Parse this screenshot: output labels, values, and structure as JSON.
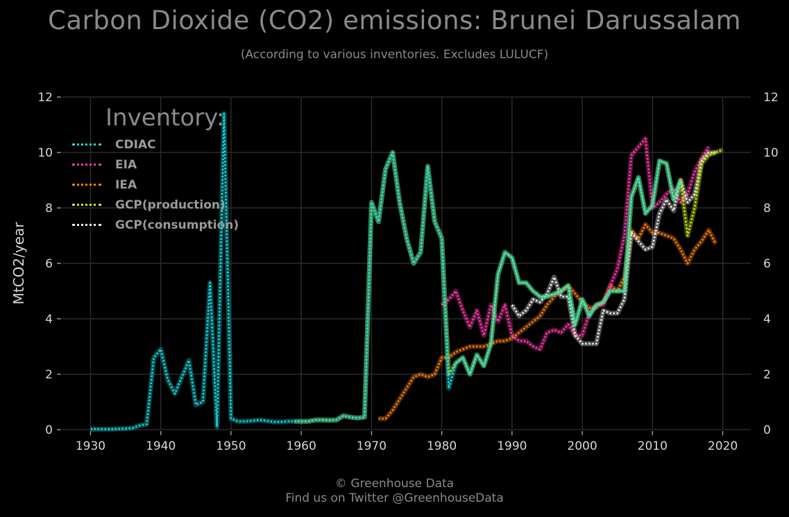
{
  "title": "Carbon Dioxide (CO2) emissions: Brunei Darussalam",
  "subtitle": "(According to various inventories. Excludes LULUCF)",
  "footer": {
    "line1": "© Greenhouse Data",
    "line2": "Find us on Twitter @GreenhouseData"
  },
  "legend": {
    "title": "Inventory:"
  },
  "colors": {
    "background": "#000000",
    "grid": "#2a2a2a",
    "text": "#8a8a8a",
    "tick": "#d8d8d8"
  },
  "chart_data": {
    "type": "line",
    "title": "Carbon Dioxide (CO2) emissions: Brunei Darussalam",
    "subtitle": "(According to various inventories. Excludes LULUCF)",
    "xlabel": "",
    "ylabel": "MtCO2/year",
    "xlim": [
      1926,
      2024
    ],
    "ylim": [
      0,
      12
    ],
    "xticks": [
      1930,
      1940,
      1950,
      1960,
      1970,
      1980,
      1990,
      2000,
      2010,
      2020
    ],
    "yticks": [
      0,
      2,
      4,
      6,
      8,
      10,
      12
    ],
    "grid": true,
    "legend_position": "top-left",
    "series": [
      {
        "name": "CDIAC",
        "color": "#1ad8e0",
        "x": [
          1930,
          1931,
          1932,
          1933,
          1934,
          1935,
          1936,
          1937,
          1938,
          1939,
          1940,
          1941,
          1942,
          1943,
          1944,
          1945,
          1946,
          1947,
          1948,
          1949,
          1950,
          1951,
          1952,
          1953,
          1954,
          1955,
          1956,
          1957,
          1958,
          1959,
          1960,
          1961,
          1962,
          1963,
          1964,
          1965,
          1966,
          1967,
          1968,
          1969,
          1970,
          1971,
          1972,
          1973,
          1974,
          1975,
          1976,
          1977,
          1978,
          1979,
          1980,
          1981,
          1982,
          1983,
          1984,
          1985,
          1986,
          1987,
          1988,
          1989,
          1990,
          1991,
          1992,
          1993,
          1994,
          1995,
          1996,
          1997,
          1998,
          1999,
          2000,
          2001,
          2002,
          2003,
          2004,
          2005,
          2006,
          2007,
          2008,
          2009,
          2010,
          2011,
          2012,
          2013,
          2014
        ],
        "y": [
          0.02,
          0.02,
          0.02,
          0.02,
          0.03,
          0.04,
          0.06,
          0.15,
          0.2,
          2.6,
          2.9,
          1.8,
          1.3,
          1.9,
          2.5,
          0.9,
          1.0,
          5.3,
          0.1,
          11.4,
          0.4,
          0.3,
          0.3,
          0.32,
          0.35,
          0.32,
          0.28,
          0.28,
          0.3,
          0.3,
          0.3,
          0.3,
          0.35,
          0.35,
          0.34,
          0.35,
          0.5,
          0.45,
          0.42,
          0.45,
          8.2,
          7.5,
          9.4,
          10.0,
          8.2,
          6.9,
          6.0,
          6.4,
          9.5,
          7.5,
          6.9,
          1.5,
          2.4,
          2.6,
          2.0,
          2.7,
          2.3,
          3.1,
          5.6,
          6.4,
          6.2,
          5.3,
          5.3,
          5.0,
          4.8,
          4.8,
          4.9,
          5.0,
          5.2,
          3.8,
          4.7,
          4.1,
          4.5,
          4.6,
          5.0,
          5.0,
          5.0,
          8.4,
          9.1,
          7.8,
          8.1,
          9.7,
          9.6,
          8.3,
          9.0
        ]
      },
      {
        "name": "EIA",
        "color": "#ff3aa8",
        "x": [
          1980,
          1981,
          1982,
          1983,
          1984,
          1985,
          1986,
          1987,
          1988,
          1989,
          1990,
          1991,
          1992,
          1993,
          1994,
          1995,
          1996,
          1997,
          1998,
          1999,
          2000,
          2001,
          2002,
          2003,
          2004,
          2005,
          2006,
          2007,
          2008,
          2009,
          2010,
          2011,
          2012,
          2013,
          2014,
          2015,
          2016,
          2017,
          2018
        ],
        "y": [
          4.5,
          4.7,
          5.0,
          4.3,
          3.7,
          4.3,
          3.4,
          4.5,
          3.9,
          4.5,
          3.4,
          3.2,
          3.2,
          3.0,
          2.9,
          3.5,
          3.6,
          3.5,
          3.8,
          3.4,
          3.4,
          4.2,
          4.5,
          4.5,
          5.2,
          5.8,
          7.0,
          9.9,
          10.2,
          10.5,
          8.0,
          8.2,
          8.5,
          8.7,
          8.2,
          8.5,
          9.3,
          9.8,
          10.2
        ]
      },
      {
        "name": "IEA",
        "color": "#ff7f0e",
        "x": [
          1971,
          1972,
          1973,
          1974,
          1975,
          1976,
          1977,
          1978,
          1979,
          1980,
          1981,
          1982,
          1983,
          1984,
          1985,
          1986,
          1987,
          1988,
          1989,
          1990,
          1991,
          1992,
          1993,
          1994,
          1995,
          1996,
          1997,
          1998,
          1999,
          2000,
          2001,
          2002,
          2003,
          2004,
          2005,
          2006,
          2007,
          2008,
          2009,
          2010,
          2011,
          2012,
          2013,
          2014,
          2015,
          2016,
          2017,
          2018,
          2019
        ],
        "y": [
          0.4,
          0.4,
          0.7,
          1.1,
          1.5,
          1.9,
          2.0,
          1.9,
          2.0,
          2.6,
          2.6,
          2.8,
          2.9,
          3.0,
          3.0,
          3.0,
          3.1,
          3.2,
          3.2,
          3.3,
          3.5,
          3.7,
          3.9,
          4.1,
          4.5,
          4.8,
          5.0,
          5.2,
          4.9,
          4.6,
          4.4,
          4.4,
          4.6,
          5.2,
          5.0,
          5.5,
          7.2,
          6.9,
          7.4,
          7.1,
          7.1,
          7.0,
          6.9,
          6.5,
          6.0,
          6.5,
          6.8,
          7.2,
          6.7
        ]
      },
      {
        "name": "GCP(production)",
        "color": "#c8e81a",
        "x": [
          1959,
          1960,
          1961,
          1962,
          1963,
          1964,
          1965,
          1966,
          1967,
          1968,
          1969,
          1970,
          1971,
          1972,
          1973,
          1974,
          1975,
          1976,
          1977,
          1978,
          1979,
          1980,
          1981,
          1982,
          1983,
          1984,
          1985,
          1986,
          1987,
          1988,
          1989,
          1990,
          1991,
          1992,
          1993,
          1994,
          1995,
          1996,
          1997,
          1998,
          1999,
          2000,
          2001,
          2002,
          2003,
          2004,
          2005,
          2006,
          2007,
          2008,
          2009,
          2010,
          2011,
          2012,
          2013,
          2014,
          2015,
          2016,
          2017,
          2018,
          2019,
          2020
        ],
        "y": [
          0.3,
          0.3,
          0.3,
          0.35,
          0.35,
          0.34,
          0.35,
          0.5,
          0.45,
          0.42,
          0.45,
          8.2,
          7.5,
          9.4,
          10.0,
          8.2,
          6.9,
          6.0,
          6.4,
          9.5,
          7.5,
          6.9,
          2.0,
          2.4,
          2.6,
          2.0,
          2.7,
          2.3,
          3.1,
          5.6,
          6.4,
          6.2,
          5.3,
          5.3,
          5.0,
          4.8,
          4.8,
          4.9,
          5.0,
          5.2,
          3.8,
          4.7,
          4.1,
          4.5,
          4.6,
          5.0,
          5.0,
          5.0,
          8.4,
          9.1,
          7.8,
          8.1,
          9.7,
          9.6,
          8.3,
          9.0,
          7.0,
          8.0,
          9.6,
          9.9,
          10.0,
          10.1
        ]
      },
      {
        "name": "GCP(consumption)",
        "color": "#eeeeee",
        "x": [
          1990,
          1991,
          1992,
          1993,
          1994,
          1995,
          1996,
          1997,
          1998,
          1999,
          2000,
          2001,
          2002,
          2003,
          2004,
          2005,
          2006,
          2007,
          2008,
          2009,
          2010,
          2011,
          2012,
          2013,
          2014,
          2015,
          2016,
          2017,
          2018,
          2019
        ],
        "y": [
          4.5,
          4.1,
          4.3,
          4.7,
          4.6,
          4.9,
          5.5,
          4.8,
          4.8,
          3.4,
          3.1,
          3.1,
          3.1,
          4.3,
          4.2,
          4.2,
          4.7,
          7.1,
          6.8,
          6.5,
          6.6,
          7.8,
          8.3,
          7.9,
          9.0,
          8.2,
          8.5,
          9.7,
          10.0,
          10.0
        ]
      }
    ]
  }
}
